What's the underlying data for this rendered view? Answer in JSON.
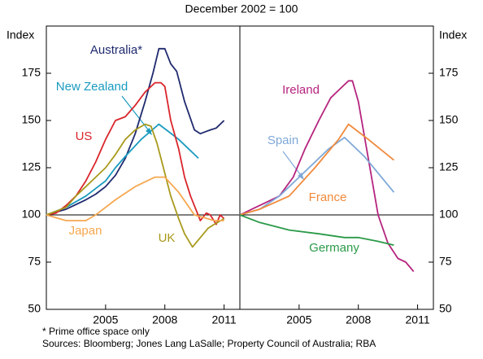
{
  "subtitle": "December 2002 = 100",
  "notes": [
    "* Prime office space only",
    "Sources: Bloomberg; Jones Lang LaSalle; Property Council of Australia; RBA"
  ],
  "chart_data": [
    {
      "type": "line",
      "y_label": "Index",
      "xlim": [
        2002,
        2011.8
      ],
      "xticks": [
        2005,
        2008,
        2011
      ],
      "ylim": [
        50,
        200
      ],
      "yticks": [
        50,
        75,
        100,
        125,
        150,
        175
      ],
      "series": [
        {
          "name": "Australia*",
          "color": "#1f2a6e",
          "x": [
            2002,
            2003,
            2004,
            2004.5,
            2005,
            2005.5,
            2006,
            2006.5,
            2007,
            2007.4,
            2007.7,
            2008,
            2008.3,
            2008.6,
            2009,
            2009.5,
            2009.8,
            2010.3,
            2010.6,
            2011
          ],
          "values": [
            100,
            103,
            108,
            111,
            115,
            121,
            130,
            143,
            160,
            175,
            188,
            188,
            180,
            176,
            160,
            145,
            143,
            145,
            146,
            150
          ]
        },
        {
          "name": "New Zealand",
          "color": "#1a9bbf",
          "x": [
            2002,
            2003,
            2004,
            2005,
            2005.5,
            2006,
            2006.8,
            2007.7,
            2008.2,
            2008.7,
            2009.2,
            2009.7
          ],
          "values": [
            100,
            104,
            110,
            118,
            125,
            131,
            140,
            148,
            144,
            140,
            135,
            130
          ]
        },
        {
          "name": "US",
          "color": "#d9262c",
          "x": [
            2002,
            2002.5,
            2003,
            2003.5,
            2004,
            2004.5,
            2005,
            2005.5,
            2006,
            2006.5,
            2007,
            2007.5,
            2007.8,
            2008,
            2008.3,
            2008.7,
            2009,
            2009.3,
            2009.8,
            2010.1,
            2010.3,
            2010.6,
            2010.8,
            2011
          ],
          "values": [
            100,
            101,
            105,
            110,
            118,
            128,
            140,
            150,
            152,
            158,
            165,
            170,
            170,
            168,
            150,
            135,
            120,
            110,
            97,
            101,
            100,
            95,
            100,
            98
          ]
        },
        {
          "name": "UK",
          "color": "#a89a1c",
          "x": [
            2002,
            2003,
            2003.5,
            2004,
            2005,
            2005.5,
            2006,
            2006.5,
            2007,
            2007.3,
            2007.6,
            2007.8,
            2008.3,
            2008.7,
            2009,
            2009.4,
            2009.8,
            2010.2,
            2010.5,
            2011
          ],
          "values": [
            100,
            104,
            110,
            115,
            125,
            132,
            140,
            145,
            148,
            147,
            138,
            130,
            110,
            98,
            90,
            83,
            88,
            93,
            95,
            98
          ]
        },
        {
          "name": "Japan",
          "color": "#f5a850",
          "x": [
            2002,
            2003,
            2004,
            2004.5,
            2005,
            2005.5,
            2006.5,
            2007.5,
            2008,
            2008.7,
            2009.5,
            2010.5,
            2011
          ],
          "values": [
            100,
            97,
            97,
            100,
            104,
            108,
            115,
            120,
            120,
            112,
            100,
            97,
            97
          ]
        }
      ]
    },
    {
      "type": "line",
      "y_label": "Index",
      "xlim": [
        2002,
        2011.8
      ],
      "xticks": [
        2005,
        2008,
        2011
      ],
      "ylim": [
        50,
        200
      ],
      "yticks": [
        50,
        75,
        100,
        125,
        150,
        175
      ],
      "series": [
        {
          "name": "Ireland",
          "color": "#b5247e",
          "x": [
            2002,
            2003,
            2004,
            2004.7,
            2005.3,
            2006,
            2006.6,
            2007,
            2007.5,
            2007.7,
            2008,
            2008.5,
            2009,
            2009.5,
            2010,
            2010.4,
            2010.8
          ],
          "values": [
            100,
            105,
            110,
            120,
            135,
            150,
            162,
            166,
            171,
            171,
            160,
            130,
            100,
            85,
            77,
            75,
            70
          ]
        },
        {
          "name": "Spain",
          "color": "#7fa8d8",
          "x": [
            2002,
            2003,
            2004,
            2005,
            2006.5,
            2007.3,
            2008.3,
            2009.8
          ],
          "values": [
            100,
            103,
            110,
            120,
            135,
            141,
            131,
            112
          ]
        },
        {
          "name": "France",
          "color": "#f08a3c",
          "x": [
            2002,
            2003,
            2004.5,
            2005.8,
            2007,
            2007.5,
            2008.5,
            2009.8
          ],
          "values": [
            100,
            103,
            110,
            125,
            140,
            148,
            140,
            129
          ]
        },
        {
          "name": "Germany",
          "color": "#2a9a48",
          "x": [
            2002,
            2003,
            2004.5,
            2006,
            2007.3,
            2008,
            2009,
            2009.8
          ],
          "values": [
            100,
            96,
            92,
            90,
            88,
            88,
            86,
            84
          ]
        }
      ]
    }
  ]
}
